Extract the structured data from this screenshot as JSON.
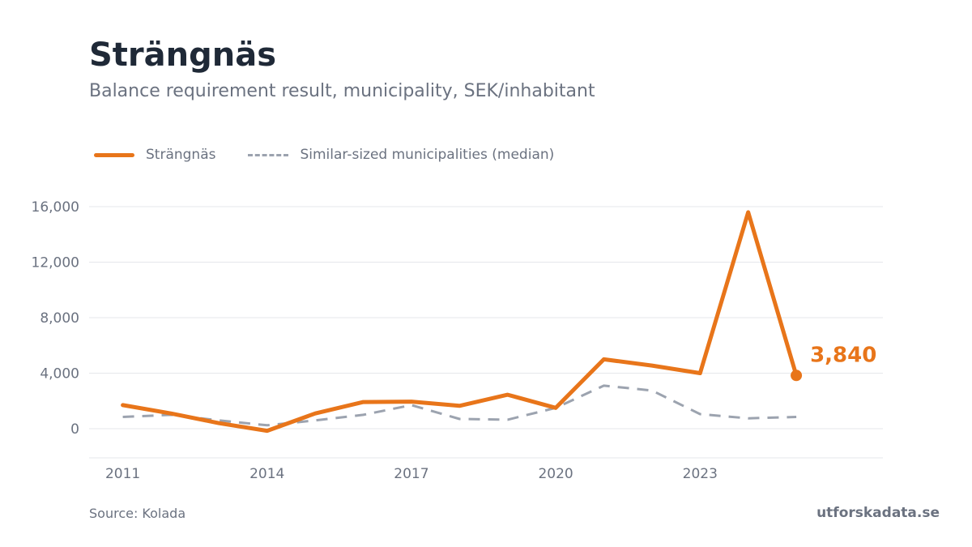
{
  "header": {
    "title": "Strängnäs",
    "subtitle": "Balance requirement result, municipality, SEK/inhabitant"
  },
  "legend": {
    "position": "top-left",
    "items": [
      {
        "label": "Strängnäs",
        "style": "solid",
        "color": "#e8751a"
      },
      {
        "label": "Similar-sized municipalities (median)",
        "style": "dashed",
        "color": "#9ca3af"
      }
    ]
  },
  "footer": {
    "source": "Source: Kolada",
    "brand": "utforskadata.se"
  },
  "colors": {
    "accent": "#e8751a",
    "median": "#9ca3af",
    "grid": "#e5e7eb",
    "axis_text": "#6b7280",
    "title": "#1f2937"
  },
  "chart_data": {
    "type": "line",
    "title": "Strängnäs",
    "subtitle": "Balance requirement result, municipality, SEK/inhabitant",
    "xlabel": "",
    "ylabel": "",
    "x": [
      2011,
      2012,
      2013,
      2014,
      2015,
      2016,
      2017,
      2018,
      2019,
      2020,
      2021,
      2022,
      2023,
      2024,
      2025
    ],
    "series": [
      {
        "name": "Strängnäs",
        "style": "solid",
        "color": "#e8751a",
        "values": [
          1700,
          1100,
          400,
          -150,
          1100,
          1920,
          1950,
          1650,
          2450,
          1500,
          5000,
          4550,
          4000,
          15600,
          3840
        ]
      },
      {
        "name": "Similar-sized municipalities (median)",
        "style": "dashed",
        "color": "#9ca3af",
        "values": [
          850,
          1000,
          600,
          250,
          600,
          1000,
          1700,
          700,
          650,
          1500,
          3100,
          2750,
          1050,
          750,
          850
        ]
      }
    ],
    "end_label": "3,840",
    "x_ticks": [
      2011,
      2014,
      2017,
      2020,
      2023
    ],
    "x_tick_labels": [
      "2011",
      "2014",
      "2017",
      "2020",
      "2023"
    ],
    "y_ticks": [
      0,
      4000,
      8000,
      12000,
      16000
    ],
    "y_tick_labels": [
      "0",
      "4,000",
      "8,000",
      "12,000",
      "16,000"
    ],
    "xlim": [
      2010.3,
      2026.8
    ],
    "ylim": [
      -2100,
      16000
    ],
    "grid": true
  }
}
